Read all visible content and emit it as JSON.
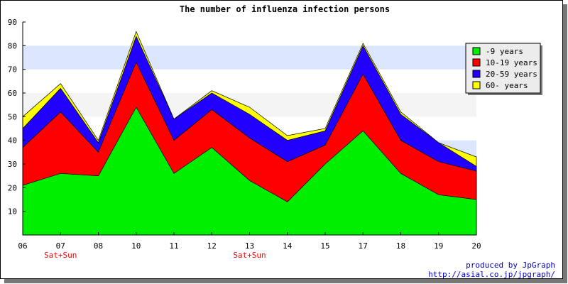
{
  "chart_data": {
    "type": "area",
    "stacked": true,
    "title": "The number of influenza infection persons",
    "xlabel": "",
    "ylabel": "",
    "categories": [
      "06",
      "07",
      "08",
      "10",
      "11",
      "12",
      "13",
      "14",
      "15",
      "17",
      "18",
      "19",
      "20"
    ],
    "category_notes": [
      "",
      "Sat+Sun",
      "",
      "",
      "",
      "",
      "Sat+Sun",
      "",
      "",
      "",
      "",
      "",
      ""
    ],
    "ylim": [
      0,
      90
    ],
    "yticks": [
      10,
      20,
      30,
      40,
      50,
      60,
      70,
      80,
      90
    ],
    "grid": "horizontal bands",
    "legend_position": "top-right",
    "series": [
      {
        "name": "-9 years",
        "color": "#00ee00",
        "values": [
          21,
          26,
          25,
          54,
          26,
          37,
          23,
          14,
          30,
          44,
          26,
          17,
          15
        ]
      },
      {
        "name": "10-19 years",
        "color": "#ff0000",
        "values": [
          16,
          26,
          10,
          19,
          14,
          16,
          18,
          17,
          8,
          24,
          14,
          14,
          12
        ]
      },
      {
        "name": "20-59 years",
        "color": "#2200ff",
        "values": [
          8,
          10,
          4,
          11,
          9,
          7,
          10,
          9,
          6,
          12,
          11,
          8,
          2
        ]
      },
      {
        "name": "60- years",
        "color": "#ffff00",
        "values": [
          5,
          2,
          1,
          2,
          0,
          1,
          3,
          2,
          1,
          1,
          1,
          0,
          4
        ]
      }
    ]
  },
  "credits": {
    "line1": "produced by JpGraph",
    "line2": "http://asial.co.jp/jpgraph/"
  }
}
